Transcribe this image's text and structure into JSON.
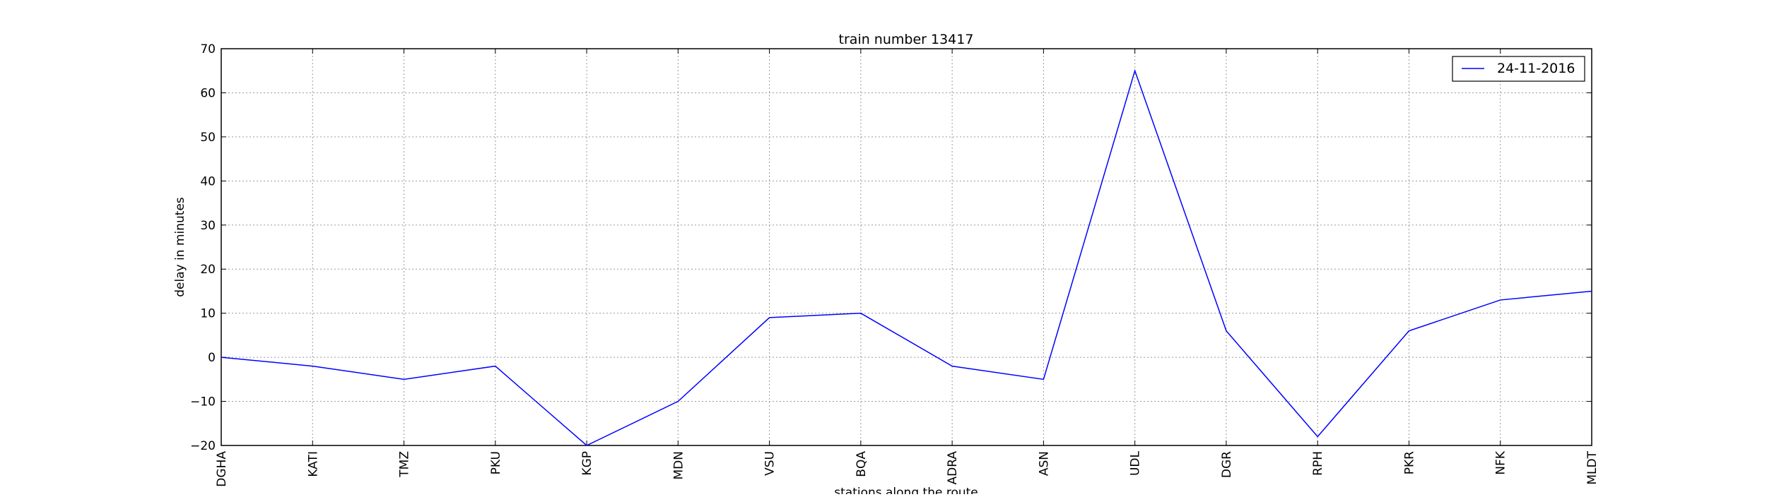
{
  "chart_data": {
    "type": "line",
    "title": "train number 13417",
    "xlabel": "stations along the route",
    "ylabel": "delay in minutes",
    "categories": [
      "DGHA",
      "KATI",
      "TMZ",
      "PKU",
      "KGP",
      "MDN",
      "VSU",
      "BQA",
      "ADRA",
      "ASN",
      "UDL",
      "DGR",
      "RPH",
      "PKR",
      "NFK",
      "MLDT"
    ],
    "series": [
      {
        "name": "24-11-2016",
        "color": "#0000ff",
        "values": [
          0,
          -2,
          -5,
          -2,
          -20,
          -10,
          9,
          10,
          -2,
          -5,
          65,
          6,
          -18,
          6,
          13,
          15
        ]
      }
    ],
    "ylim": [
      -20,
      70
    ],
    "yticks": [
      -20,
      -10,
      0,
      10,
      20,
      30,
      40,
      50,
      60,
      70
    ],
    "grid": true,
    "legend_position": "top-right"
  }
}
